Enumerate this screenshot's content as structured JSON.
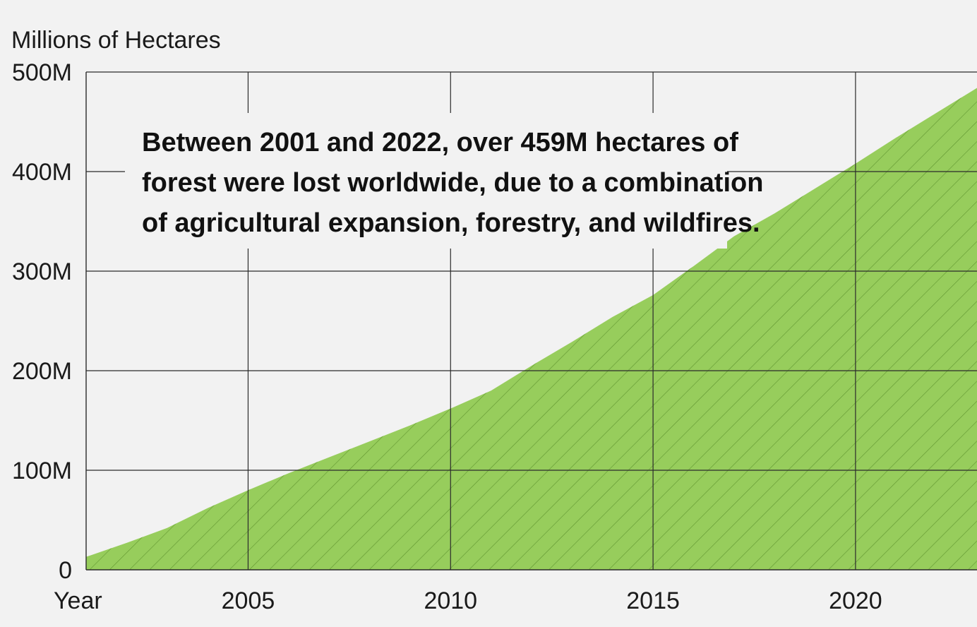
{
  "chart_data": {
    "type": "area",
    "title": "",
    "ylabel": "Millions of Hectares",
    "xlabel": "Year",
    "x": [
      2001,
      2002,
      2003,
      2004,
      2005,
      2006,
      2007,
      2008,
      2009,
      2010,
      2011,
      2012,
      2013,
      2014,
      2015,
      2016,
      2017,
      2018,
      2019,
      2020,
      2021,
      2022
    ],
    "series": [
      {
        "values": [
          13,
          27,
          42,
          62,
          80,
          97,
          113,
          129,
          145,
          162,
          180,
          205,
          229,
          254,
          276,
          305,
          335,
          358,
          383,
          408,
          434,
          459
        ]
      }
    ],
    "xlim": [
      2001,
      2023
    ],
    "ylim": [
      0,
      500
    ],
    "yticks": [
      0,
      100,
      200,
      300,
      400,
      500
    ],
    "ytick_labels": [
      "0",
      "100M",
      "200M",
      "300M",
      "400M",
      "500M"
    ],
    "xticks": [
      2005,
      2010,
      2015,
      2020
    ],
    "xtick_labels": [
      "2005",
      "2010",
      "2015",
      "2020"
    ],
    "grid": true,
    "colors": {
      "fill": "#97cd5c",
      "hatch": "#5a8f2c",
      "grid": "#2b2b2b",
      "background": "#f2f2f2"
    },
    "annotation": {
      "lines": [
        "Between 2001 and 2022, over 459M hectares of",
        "forest were lost worldwide, due to a combination",
        "of agricultural expansion, forestry, and wildfires."
      ]
    }
  }
}
